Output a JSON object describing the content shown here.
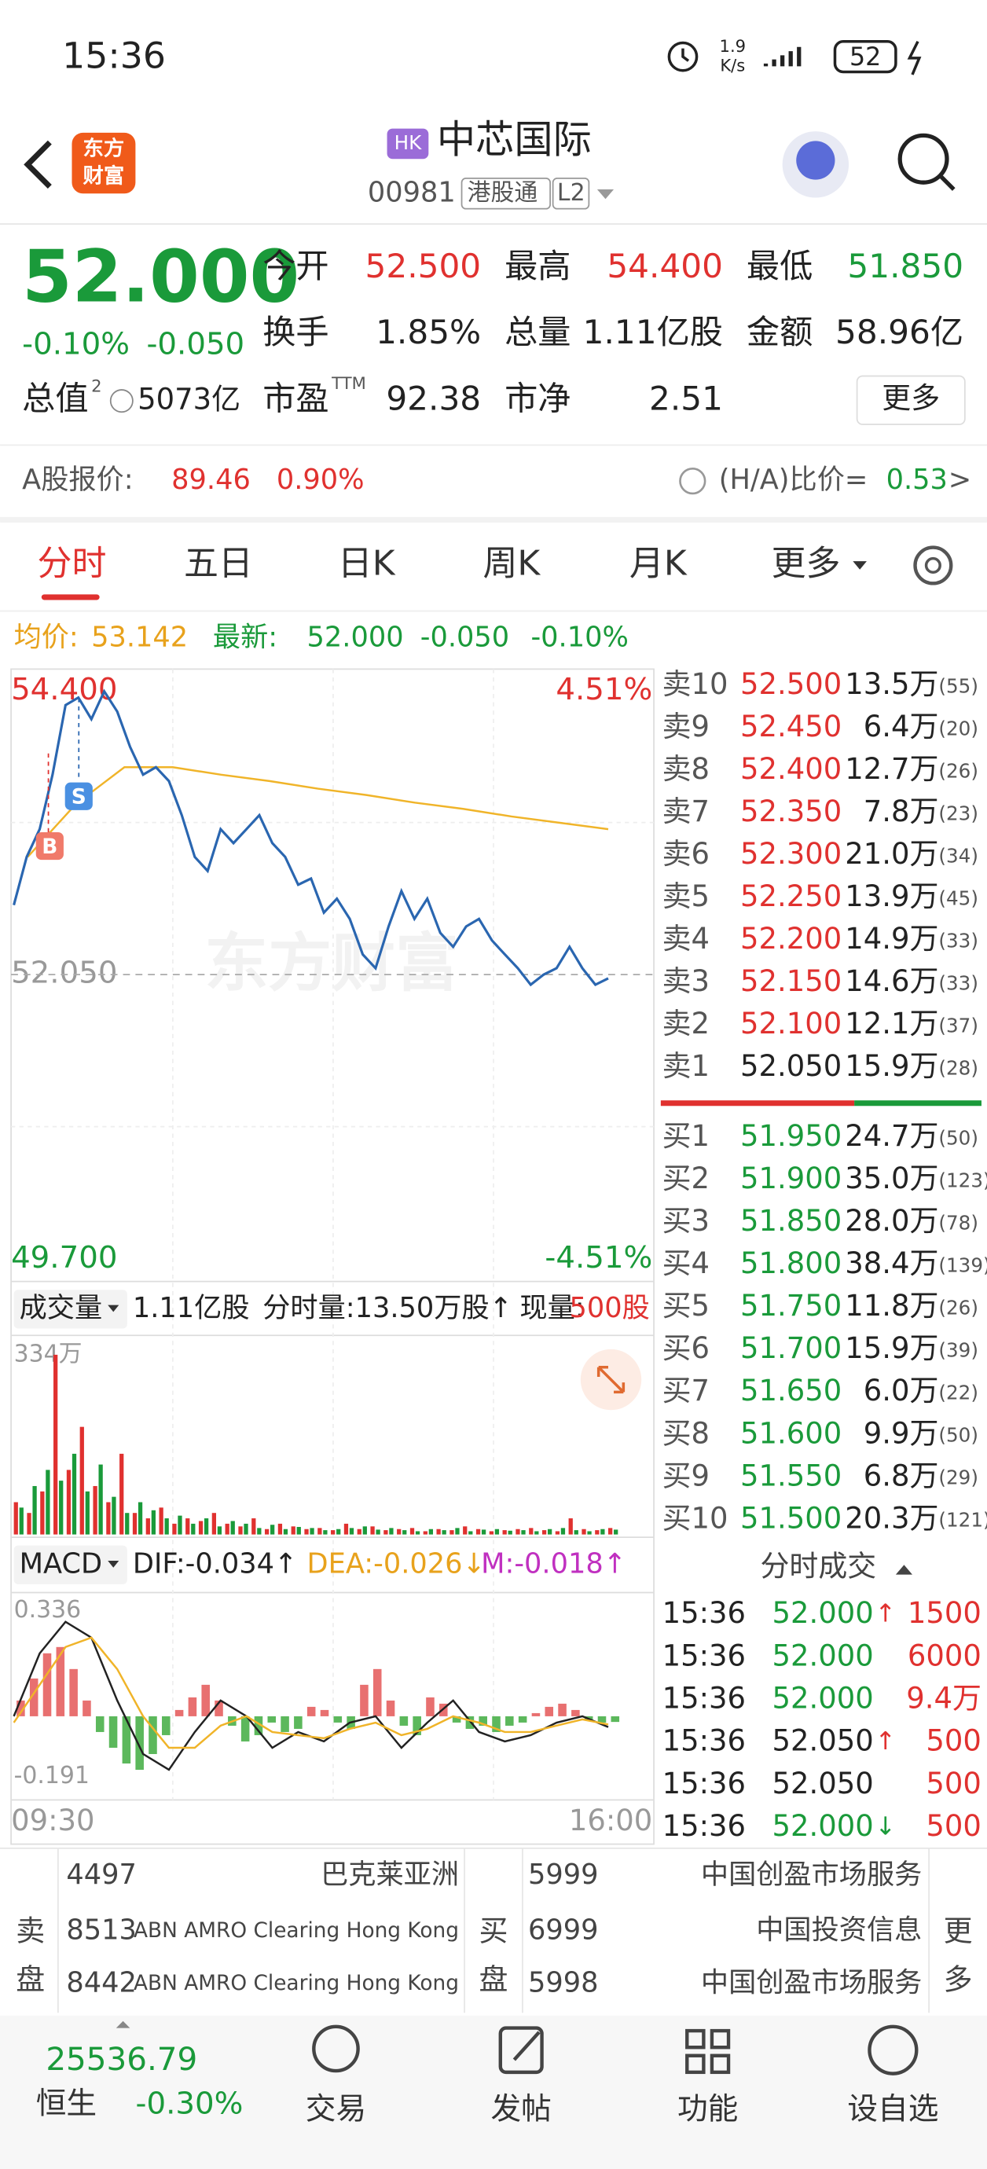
{
  "status": {
    "time": "15:36",
    "speed": "1.9",
    "speed_unit": "K/s",
    "battery": "52"
  },
  "header": {
    "logo": [
      "东方",
      "财富"
    ],
    "market_tag": "HK",
    "name": "中芯国际",
    "code": "00981",
    "tags": [
      "港股通",
      "L2"
    ]
  },
  "quote": {
    "price": "52.000",
    "change_pct": "-0.10%",
    "change": "-0.050",
    "fields": [
      {
        "label": "今开",
        "value": "52.500",
        "color": "#e0312f"
      },
      {
        "label": "最高",
        "value": "54.400",
        "color": "#e0312f"
      },
      {
        "label": "最低",
        "value": "51.850",
        "color": "#1a9a3a"
      },
      {
        "label": "换手",
        "value": "1.85%"
      },
      {
        "label": "总量",
        "value": "1.11亿股"
      },
      {
        "label": "金额",
        "value": "58.96亿"
      },
      {
        "label": "市盈",
        "sup": "TTM",
        "value": "92.38"
      },
      {
        "label": "市净",
        "value": "2.51"
      }
    ],
    "market_value": {
      "label": "总值",
      "sup": "2",
      "value": "5073亿"
    },
    "more": "更多"
  },
  "a_share": {
    "label": "A股报价:",
    "price": "89.46",
    "pct": "0.90%",
    "ratio_label": "(H/A)比价=",
    "ratio": "0.53"
  },
  "tabs": [
    "分时",
    "五日",
    "日K",
    "周K",
    "月K",
    "更多"
  ],
  "summary": {
    "avg_label": "均价:",
    "avg": "53.142",
    "last_label": "最新:",
    "last": "52.000",
    "change": "-0.050",
    "pct": "-0.10%"
  },
  "intraday": {
    "ylim": [
      49.7,
      54.4
    ],
    "yticks": [
      {
        "value": 54.4,
        "label": "54.400"
      },
      {
        "value": 52.05,
        "label": "52.050"
      },
      {
        "value": 49.7,
        "label": "49.700"
      }
    ],
    "pct_labels": [
      "4.51%",
      "-4.51%"
    ],
    "watermark": "东方财富",
    "markers": [
      "B",
      "S"
    ],
    "price": [
      52.6,
      52.98,
      53.2,
      53.63,
      54.18,
      54.24,
      54.07,
      54.29,
      54.13,
      53.85,
      53.63,
      53.69,
      53.58,
      53.31,
      52.98,
      52.87,
      53.2,
      53.09,
      53.2,
      53.31,
      53.09,
      52.98,
      52.76,
      52.81,
      52.54,
      52.65,
      52.49,
      52.21,
      52.1,
      52.43,
      52.71,
      52.49,
      52.65,
      52.38,
      52.27,
      52.43,
      52.49,
      52.32,
      52.21,
      52.1,
      51.97,
      52.05,
      52.1,
      52.27,
      52.1,
      51.97,
      52.02
    ],
    "avg": [
      52.98,
      53.4,
      53.69,
      53.69,
      53.63,
      53.58,
      53.52,
      53.47,
      53.41,
      53.36,
      53.3,
      53.25,
      53.2
    ],
    "x_labels": [
      "09:30",
      "16:00"
    ]
  },
  "volume": {
    "label": "成交量",
    "total": "1.11亿股",
    "tick_vol": "分时量:13.50万股↑",
    "now_label": "现量:",
    "now": "500股",
    "ylim": [
      0,
      334
    ],
    "yticks": [
      {
        "value": 334,
        "label": "334万"
      }
    ],
    "up_values": [
      60,
      40,
      80,
      334,
      120,
      200,
      90,
      60,
      150,
      40,
      30,
      50,
      20,
      30,
      25,
      40,
      20,
      15,
      30,
      10,
      20,
      15,
      10,
      12,
      8,
      20,
      10,
      15,
      8,
      10,
      12,
      6,
      10,
      8,
      15,
      10,
      6,
      8,
      10,
      12,
      8,
      6,
      30,
      10,
      8,
      12
    ],
    "down_values": [
      50,
      90,
      120,
      100,
      150,
      80,
      130,
      70,
      40,
      60,
      45,
      30,
      35,
      20,
      30,
      15,
      25,
      20,
      12,
      18,
      10,
      14,
      12,
      8,
      10,
      12,
      15,
      9,
      12,
      8,
      6,
      10,
      8,
      12,
      6,
      9,
      10,
      7,
      8,
      6,
      10,
      12,
      8,
      6,
      10,
      9
    ]
  },
  "macd": {
    "label": "MACD",
    "dif_label": "DIF:-0.034↑",
    "dea_label": "DEA:-0.026↓",
    "m_label": "M:-0.018↑",
    "ylim": [
      -0.191,
      0.336
    ],
    "yticks": [
      0.336,
      -0.191
    ],
    "hist": [
      0.05,
      0.12,
      0.2,
      0.22,
      0.15,
      0.05,
      -0.05,
      -0.1,
      -0.15,
      -0.17,
      -0.12,
      -0.06,
      0.02,
      0.06,
      0.1,
      0.05,
      -0.03,
      -0.08,
      -0.06,
      -0.02,
      -0.05,
      -0.04,
      0.03,
      0.02,
      -0.02,
      -0.04,
      0.1,
      0.15,
      0.05,
      -0.03,
      -0.06,
      0.06,
      0.04,
      -0.02,
      -0.04,
      -0.03,
      -0.05,
      -0.03,
      -0.02,
      0.01,
      0.03,
      0.04,
      0.02,
      -0.01,
      -0.02,
      -0.018
    ],
    "dif": [
      0.0,
      0.2,
      0.3,
      0.25,
      0.05,
      -0.12,
      -0.17,
      -0.05,
      0.05,
      0.0,
      -0.1,
      -0.05,
      -0.08,
      -0.02,
      0.0,
      -0.1,
      -0.02,
      0.05,
      -0.05,
      -0.08,
      -0.06,
      -0.02,
      0.0,
      -0.034
    ],
    "dea": [
      -0.02,
      0.1,
      0.22,
      0.25,
      0.15,
      0.0,
      -0.1,
      -0.1,
      -0.03,
      0.0,
      -0.05,
      -0.06,
      -0.07,
      -0.04,
      -0.02,
      -0.06,
      -0.04,
      0.0,
      -0.02,
      -0.05,
      -0.05,
      -0.03,
      -0.01,
      -0.026
    ]
  },
  "order_book": {
    "asks": [
      {
        "label": "卖10",
        "price": "52.500",
        "vol": "13.5万",
        "count": "(55)"
      },
      {
        "label": "卖9",
        "price": "52.450",
        "vol": "6.4万",
        "count": "(20)"
      },
      {
        "label": "卖8",
        "price": "52.400",
        "vol": "12.7万",
        "count": "(26)"
      },
      {
        "label": "卖7",
        "price": "52.350",
        "vol": "7.8万",
        "count": "(23)"
      },
      {
        "label": "卖6",
        "price": "52.300",
        "vol": "21.0万",
        "count": "(34)"
      },
      {
        "label": "卖5",
        "price": "52.250",
        "vol": "13.9万",
        "count": "(45)"
      },
      {
        "label": "卖4",
        "price": "52.200",
        "vol": "14.9万",
        "count": "(33)"
      },
      {
        "label": "卖3",
        "price": "52.150",
        "vol": "14.6万",
        "count": "(33)"
      },
      {
        "label": "卖2",
        "price": "52.100",
        "vol": "12.1万",
        "count": "(37)"
      },
      {
        "label": "卖1",
        "price": "52.050",
        "vol": "15.9万",
        "count": "(28)"
      }
    ],
    "bids": [
      {
        "label": "买1",
        "price": "51.950",
        "vol": "24.7万",
        "count": "(50)"
      },
      {
        "label": "买2",
        "price": "51.900",
        "vol": "35.0万",
        "count": "(123)"
      },
      {
        "label": "买3",
        "price": "51.850",
        "vol": "28.0万",
        "count": "(78)"
      },
      {
        "label": "买4",
        "price": "51.800",
        "vol": "38.4万",
        "count": "(139)"
      },
      {
        "label": "买5",
        "price": "51.750",
        "vol": "11.8万",
        "count": "(26)"
      },
      {
        "label": "买6",
        "price": "51.700",
        "vol": "15.9万",
        "count": "(39)"
      },
      {
        "label": "买7",
        "price": "51.650",
        "vol": "6.0万",
        "count": "(22)"
      },
      {
        "label": "买8",
        "price": "51.600",
        "vol": "9.9万",
        "count": "(50)"
      },
      {
        "label": "买9",
        "price": "51.550",
        "vol": "6.8万",
        "count": "(29)"
      },
      {
        "label": "买10",
        "price": "51.500",
        "vol": "20.3万",
        "count": "(121)"
      }
    ]
  },
  "trades": {
    "title": "分时成交",
    "rows": [
      {
        "time": "15:36",
        "price": "52.000",
        "arrow": "↑",
        "vol": "1500"
      },
      {
        "time": "15:36",
        "price": "52.000",
        "vol": "6000"
      },
      {
        "time": "15:36",
        "price": "52.000",
        "vol": "9.4万"
      },
      {
        "time": "15:36",
        "price": "52.050",
        "arrow": "↑",
        "vol": "500"
      },
      {
        "time": "15:36",
        "price": "52.050",
        "vol": "500"
      },
      {
        "time": "15:36",
        "price": "52.000",
        "arrow": "↓",
        "vol": "500"
      }
    ]
  },
  "brokers": {
    "sell_label": [
      "卖",
      "盘"
    ],
    "buy_label": [
      "买",
      "盘"
    ],
    "more": [
      "更",
      "多"
    ],
    "sell": [
      {
        "id": "4497",
        "name": "巴克莱亚洲"
      },
      {
        "id": "8513",
        "name": "ABN AMRO Clearing Hong Kong"
      },
      {
        "id": "8442",
        "name": "ABN AMRO Clearing Hong Kong"
      }
    ],
    "buy": [
      {
        "id": "5999",
        "name": "中国创盈市场服务"
      },
      {
        "id": "6999",
        "name": "中国投资信息"
      },
      {
        "id": "5998",
        "name": "中国创盈市场服务"
      }
    ]
  },
  "bottom": {
    "index_value": "25536.79",
    "index_name": "恒生",
    "index_pct": "-0.30%",
    "items": [
      "交易",
      "发帖",
      "功能",
      "设自选"
    ]
  }
}
